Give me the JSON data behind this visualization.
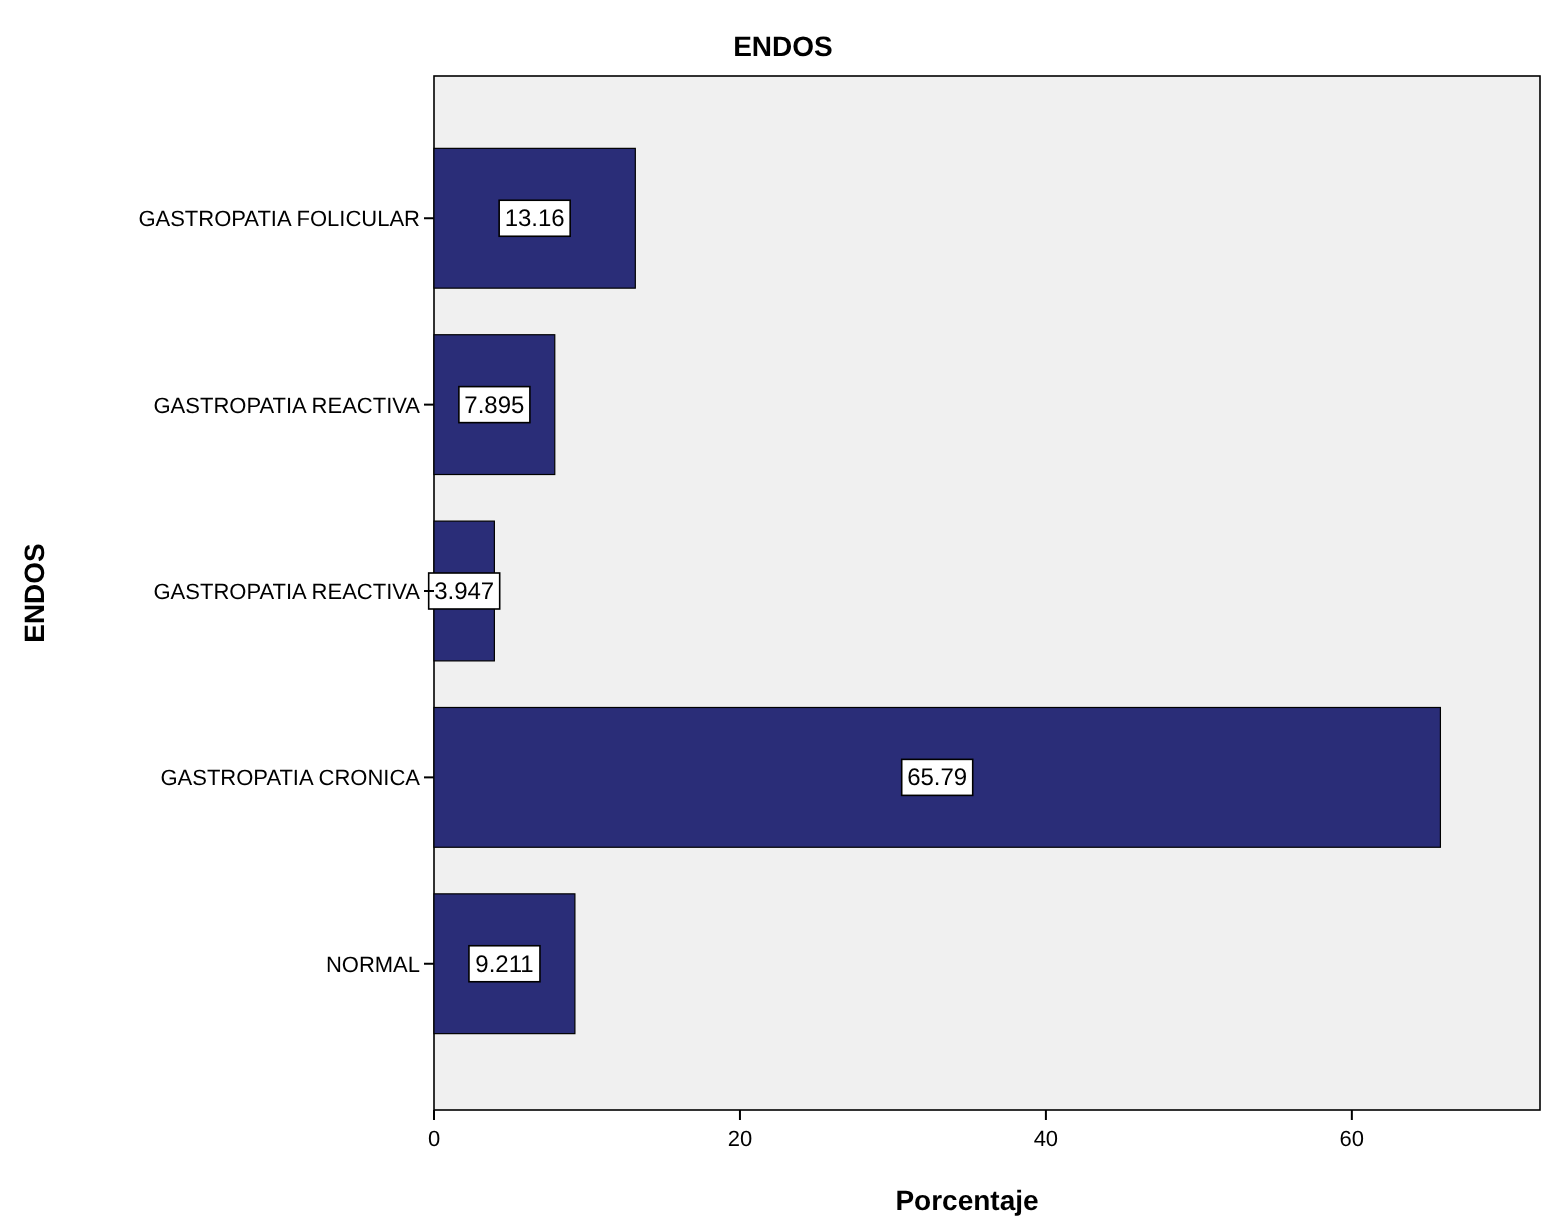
{
  "chart_data": {
    "type": "bar",
    "orientation": "horizontal",
    "title": "ENDOS",
    "ylabel": "ENDOS",
    "xlabel": "Porcentaje",
    "categories": [
      "GASTROPATIA FOLICULAR",
      "GASTROPATIA REACTIVA",
      "GASTROPATIA REACTIVA",
      "GASTROPATIA CRONICA",
      "NORMAL"
    ],
    "values": [
      13.16,
      7.895,
      3.947,
      65.79,
      9.211
    ],
    "color": "#2a2d78",
    "data_labels": true,
    "xlim": [
      0,
      72.3
    ],
    "xticks": [
      0,
      20,
      40,
      60
    ],
    "grid": false
  }
}
